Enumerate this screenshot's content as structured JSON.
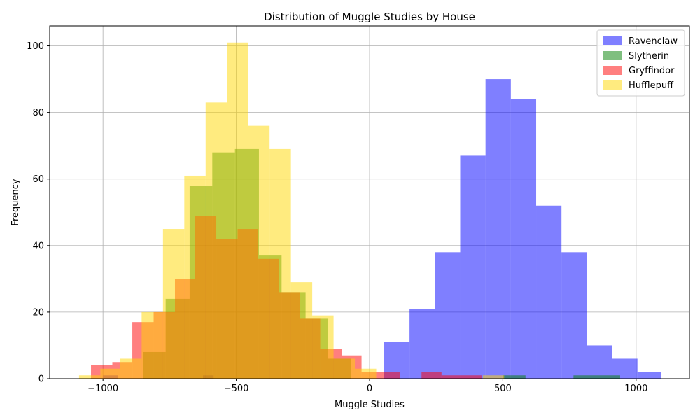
{
  "chart_data": {
    "type": "histogram",
    "title": "Distribution of Muggle Studies by House",
    "xlabel": "Muggle Studies",
    "ylabel": "Frequency",
    "xlim": [
      -1200,
      1200
    ],
    "ylim": [
      0,
      106
    ],
    "xticks": [
      -1000,
      -500,
      0,
      500,
      1000
    ],
    "yticks": [
      0,
      20,
      40,
      60,
      80,
      100
    ],
    "xtick_labels": [
      "−1000",
      "−500",
      "0",
      "500",
      "1000"
    ],
    "ytick_labels": [
      "0",
      "20",
      "40",
      "60",
      "80",
      "100"
    ],
    "grid": true,
    "legend_position": "top-right",
    "series": [
      {
        "name": "Ravenclaw",
        "color": "#0000ff",
        "alpha": 0.5,
        "bins": [
          {
            "x0": -1000,
            "x1": -945,
            "count": 1
          },
          {
            "x0": -625,
            "x1": -585,
            "count": 1
          },
          {
            "x0": 55,
            "x1": 150,
            "count": 11
          },
          {
            "x0": 150,
            "x1": 245,
            "count": 21
          },
          {
            "x0": 245,
            "x1": 340,
            "count": 38
          },
          {
            "x0": 340,
            "x1": 435,
            "count": 67
          },
          {
            "x0": 435,
            "x1": 530,
            "count": 90
          },
          {
            "x0": 530,
            "x1": 625,
            "count": 84
          },
          {
            "x0": 625,
            "x1": 720,
            "count": 52
          },
          {
            "x0": 720,
            "x1": 815,
            "count": 38
          },
          {
            "x0": 815,
            "x1": 910,
            "count": 10
          },
          {
            "x0": 910,
            "x1": 1005,
            "count": 6
          },
          {
            "x0": 1005,
            "x1": 1095,
            "count": 2
          }
        ]
      },
      {
        "name": "Slytherin",
        "color": "#008000",
        "alpha": 0.5,
        "bins": [
          {
            "x0": -850,
            "x1": -765,
            "count": 8
          },
          {
            "x0": -765,
            "x1": -675,
            "count": 24
          },
          {
            "x0": -675,
            "x1": -590,
            "count": 58
          },
          {
            "x0": -590,
            "x1": -505,
            "count": 68
          },
          {
            "x0": -505,
            "x1": -415,
            "count": 69
          },
          {
            "x0": -415,
            "x1": -330,
            "count": 37
          },
          {
            "x0": -330,
            "x1": -240,
            "count": 26
          },
          {
            "x0": -240,
            "x1": -155,
            "count": 18
          },
          {
            "x0": -155,
            "x1": -70,
            "count": 6
          },
          {
            "x0": 500,
            "x1": 585,
            "count": 1
          },
          {
            "x0": 765,
            "x1": 850,
            "count": 1
          },
          {
            "x0": 850,
            "x1": 940,
            "count": 1
          }
        ]
      },
      {
        "name": "Gryffindor",
        "color": "#ff0000",
        "alpha": 0.5,
        "bins": [
          {
            "x0": -1045,
            "x1": -965,
            "count": 4
          },
          {
            "x0": -965,
            "x1": -890,
            "count": 5
          },
          {
            "x0": -890,
            "x1": -810,
            "count": 17
          },
          {
            "x0": -810,
            "x1": -730,
            "count": 20
          },
          {
            "x0": -730,
            "x1": -655,
            "count": 30
          },
          {
            "x0": -655,
            "x1": -575,
            "count": 49
          },
          {
            "x0": -575,
            "x1": -495,
            "count": 42
          },
          {
            "x0": -495,
            "x1": -420,
            "count": 45
          },
          {
            "x0": -420,
            "x1": -340,
            "count": 36
          },
          {
            "x0": -340,
            "x1": -260,
            "count": 26
          },
          {
            "x0": -260,
            "x1": -185,
            "count": 18
          },
          {
            "x0": -185,
            "x1": -105,
            "count": 9
          },
          {
            "x0": -105,
            "x1": -30,
            "count": 7
          },
          {
            "x0": -30,
            "x1": 50,
            "count": 2
          },
          {
            "x0": 50,
            "x1": 115,
            "count": 2
          },
          {
            "x0": 195,
            "x1": 270,
            "count": 2
          },
          {
            "x0": 270,
            "x1": 325,
            "count": 1
          },
          {
            "x0": 325,
            "x1": 420,
            "count": 1
          }
        ]
      },
      {
        "name": "Hufflepuff",
        "color": "#ffd700",
        "alpha": 0.5,
        "bins": [
          {
            "x0": -1090,
            "x1": -1010,
            "count": 1
          },
          {
            "x0": -1010,
            "x1": -935,
            "count": 3
          },
          {
            "x0": -935,
            "x1": -855,
            "count": 6
          },
          {
            "x0": -855,
            "x1": -775,
            "count": 20
          },
          {
            "x0": -775,
            "x1": -695,
            "count": 45
          },
          {
            "x0": -695,
            "x1": -615,
            "count": 61
          },
          {
            "x0": -615,
            "x1": -535,
            "count": 83
          },
          {
            "x0": -535,
            "x1": -455,
            "count": 101
          },
          {
            "x0": -455,
            "x1": -375,
            "count": 76
          },
          {
            "x0": -375,
            "x1": -295,
            "count": 69
          },
          {
            "x0": -295,
            "x1": -215,
            "count": 29
          },
          {
            "x0": -215,
            "x1": -135,
            "count": 19
          },
          {
            "x0": -135,
            "x1": -55,
            "count": 6
          },
          {
            "x0": -55,
            "x1": 25,
            "count": 3
          },
          {
            "x0": 425,
            "x1": 505,
            "count": 1
          }
        ]
      }
    ]
  }
}
